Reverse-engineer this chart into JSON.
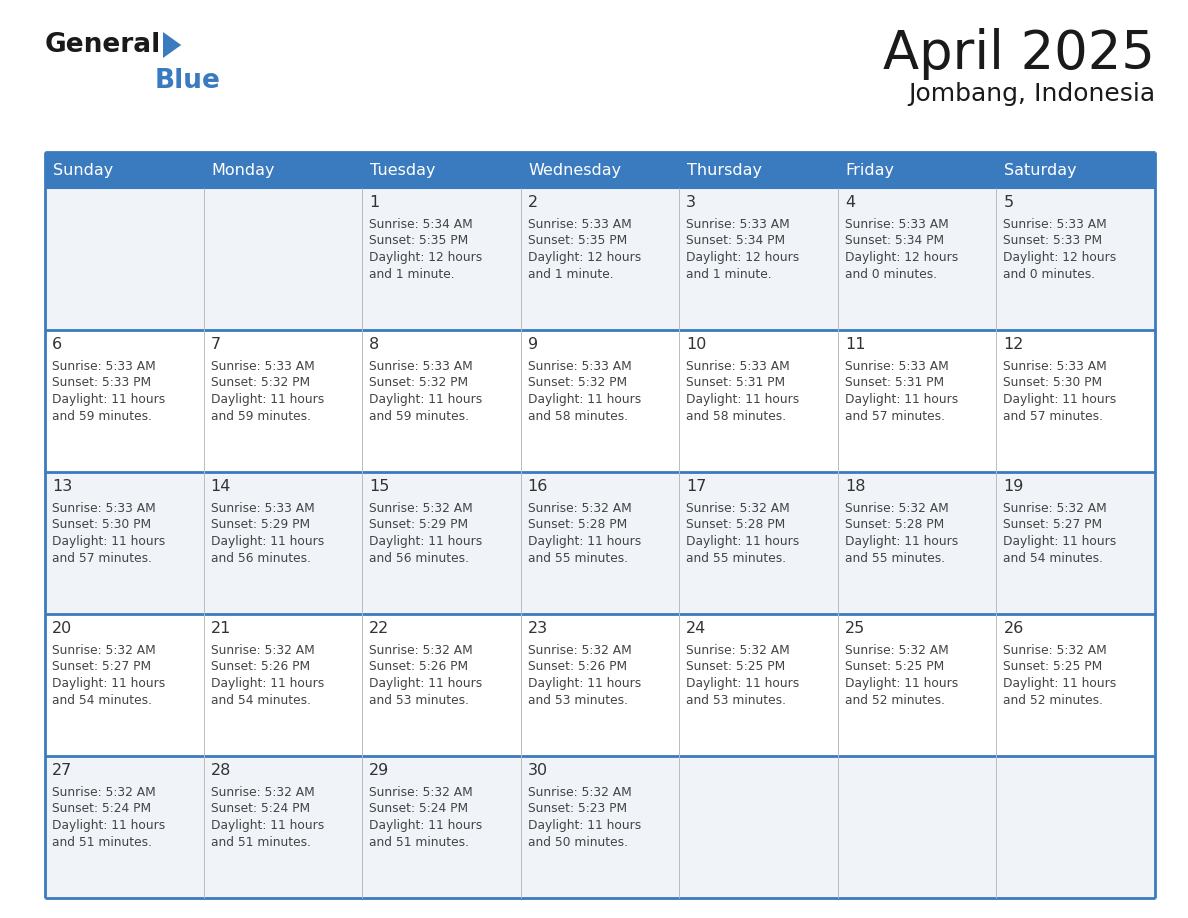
{
  "title": "April 2025",
  "subtitle": "Jombang, Indonesia",
  "header_bg": "#3a7bbf",
  "header_text_color": "#ffffff",
  "day_names": [
    "Sunday",
    "Monday",
    "Tuesday",
    "Wednesday",
    "Thursday",
    "Friday",
    "Saturday"
  ],
  "cell_border_color": "#3a7bbf",
  "row_bg_colors": [
    "#f0f4f8",
    "#ffffff",
    "#f0f4f8",
    "#ffffff",
    "#f0f4f8"
  ],
  "date_text_color": "#333333",
  "info_text_color": "#444444",
  "calendar_data": [
    [
      {
        "date": "",
        "sunrise": "",
        "sunset": "",
        "daylight": ""
      },
      {
        "date": "",
        "sunrise": "",
        "sunset": "",
        "daylight": ""
      },
      {
        "date": "1",
        "sunrise": "5:34 AM",
        "sunset": "5:35 PM",
        "daylight": "12 hours\nand 1 minute."
      },
      {
        "date": "2",
        "sunrise": "5:33 AM",
        "sunset": "5:35 PM",
        "daylight": "12 hours\nand 1 minute."
      },
      {
        "date": "3",
        "sunrise": "5:33 AM",
        "sunset": "5:34 PM",
        "daylight": "12 hours\nand 1 minute."
      },
      {
        "date": "4",
        "sunrise": "5:33 AM",
        "sunset": "5:34 PM",
        "daylight": "12 hours\nand 0 minutes."
      },
      {
        "date": "5",
        "sunrise": "5:33 AM",
        "sunset": "5:33 PM",
        "daylight": "12 hours\nand 0 minutes."
      }
    ],
    [
      {
        "date": "6",
        "sunrise": "5:33 AM",
        "sunset": "5:33 PM",
        "daylight": "11 hours\nand 59 minutes."
      },
      {
        "date": "7",
        "sunrise": "5:33 AM",
        "sunset": "5:32 PM",
        "daylight": "11 hours\nand 59 minutes."
      },
      {
        "date": "8",
        "sunrise": "5:33 AM",
        "sunset": "5:32 PM",
        "daylight": "11 hours\nand 59 minutes."
      },
      {
        "date": "9",
        "sunrise": "5:33 AM",
        "sunset": "5:32 PM",
        "daylight": "11 hours\nand 58 minutes."
      },
      {
        "date": "10",
        "sunrise": "5:33 AM",
        "sunset": "5:31 PM",
        "daylight": "11 hours\nand 58 minutes."
      },
      {
        "date": "11",
        "sunrise": "5:33 AM",
        "sunset": "5:31 PM",
        "daylight": "11 hours\nand 57 minutes."
      },
      {
        "date": "12",
        "sunrise": "5:33 AM",
        "sunset": "5:30 PM",
        "daylight": "11 hours\nand 57 minutes."
      }
    ],
    [
      {
        "date": "13",
        "sunrise": "5:33 AM",
        "sunset": "5:30 PM",
        "daylight": "11 hours\nand 57 minutes."
      },
      {
        "date": "14",
        "sunrise": "5:33 AM",
        "sunset": "5:29 PM",
        "daylight": "11 hours\nand 56 minutes."
      },
      {
        "date": "15",
        "sunrise": "5:32 AM",
        "sunset": "5:29 PM",
        "daylight": "11 hours\nand 56 minutes."
      },
      {
        "date": "16",
        "sunrise": "5:32 AM",
        "sunset": "5:28 PM",
        "daylight": "11 hours\nand 55 minutes."
      },
      {
        "date": "17",
        "sunrise": "5:32 AM",
        "sunset": "5:28 PM",
        "daylight": "11 hours\nand 55 minutes."
      },
      {
        "date": "18",
        "sunrise": "5:32 AM",
        "sunset": "5:28 PM",
        "daylight": "11 hours\nand 55 minutes."
      },
      {
        "date": "19",
        "sunrise": "5:32 AM",
        "sunset": "5:27 PM",
        "daylight": "11 hours\nand 54 minutes."
      }
    ],
    [
      {
        "date": "20",
        "sunrise": "5:32 AM",
        "sunset": "5:27 PM",
        "daylight": "11 hours\nand 54 minutes."
      },
      {
        "date": "21",
        "sunrise": "5:32 AM",
        "sunset": "5:26 PM",
        "daylight": "11 hours\nand 54 minutes."
      },
      {
        "date": "22",
        "sunrise": "5:32 AM",
        "sunset": "5:26 PM",
        "daylight": "11 hours\nand 53 minutes."
      },
      {
        "date": "23",
        "sunrise": "5:32 AM",
        "sunset": "5:26 PM",
        "daylight": "11 hours\nand 53 minutes."
      },
      {
        "date": "24",
        "sunrise": "5:32 AM",
        "sunset": "5:25 PM",
        "daylight": "11 hours\nand 53 minutes."
      },
      {
        "date": "25",
        "sunrise": "5:32 AM",
        "sunset": "5:25 PM",
        "daylight": "11 hours\nand 52 minutes."
      },
      {
        "date": "26",
        "sunrise": "5:32 AM",
        "sunset": "5:25 PM",
        "daylight": "11 hours\nand 52 minutes."
      }
    ],
    [
      {
        "date": "27",
        "sunrise": "5:32 AM",
        "sunset": "5:24 PM",
        "daylight": "11 hours\nand 51 minutes."
      },
      {
        "date": "28",
        "sunrise": "5:32 AM",
        "sunset": "5:24 PM",
        "daylight": "11 hours\nand 51 minutes."
      },
      {
        "date": "29",
        "sunrise": "5:32 AM",
        "sunset": "5:24 PM",
        "daylight": "11 hours\nand 51 minutes."
      },
      {
        "date": "30",
        "sunrise": "5:32 AM",
        "sunset": "5:23 PM",
        "daylight": "11 hours\nand 50 minutes."
      },
      {
        "date": "",
        "sunrise": "",
        "sunset": "",
        "daylight": ""
      },
      {
        "date": "",
        "sunrise": "",
        "sunset": "",
        "daylight": ""
      },
      {
        "date": "",
        "sunrise": "",
        "sunset": "",
        "daylight": ""
      }
    ]
  ]
}
